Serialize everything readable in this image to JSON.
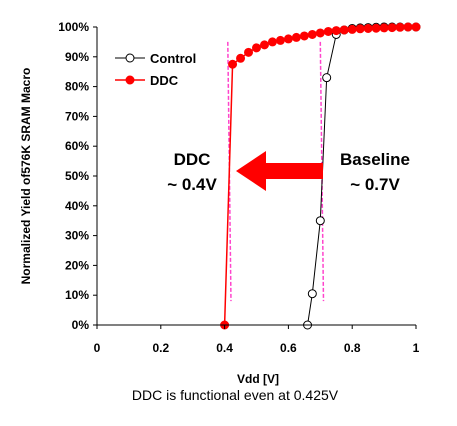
{
  "chart_data": {
    "type": "line",
    "xlabel": "Vdd [V]",
    "ylabel": "Normalized Yield of576K SRAM Macro",
    "xlim": [
      0,
      1
    ],
    "ylim": [
      0,
      100
    ],
    "x_ticks": [
      "0",
      "0.2",
      "0.4",
      "0.6",
      "0.8",
      "1"
    ],
    "y_ticks": [
      "0%",
      "10%",
      "20%",
      "30%",
      "40%",
      "50%",
      "60%",
      "70%",
      "80%",
      "90%",
      "100%"
    ],
    "legend_position": "top-left",
    "grid": false,
    "series": [
      {
        "name": "Control",
        "marker": "open-circle",
        "color": "#000000",
        "x": [
          0.66,
          0.675,
          0.7,
          0.72,
          0.75,
          0.775,
          0.8,
          0.825,
          0.85,
          0.875,
          0.9,
          0.925,
          0.95,
          0.975,
          1.0
        ],
        "y": [
          0,
          10.5,
          35,
          83,
          97.5,
          99,
          99.5,
          99.7,
          99.8,
          99.9,
          100,
          100,
          100,
          100,
          100
        ]
      },
      {
        "name": "DDC",
        "marker": "filled-circle",
        "color": "#ff0000",
        "x": [
          0.4,
          0.425,
          0.45,
          0.475,
          0.5,
          0.525,
          0.55,
          0.575,
          0.6,
          0.625,
          0.65,
          0.675,
          0.7,
          0.725,
          0.75,
          0.775,
          0.8,
          0.825,
          0.85,
          0.875,
          0.9,
          0.925,
          0.95,
          0.975,
          1.0
        ],
        "y": [
          0,
          87.5,
          89.5,
          91.5,
          93,
          94,
          95,
          95.5,
          96,
          96.5,
          97,
          97.5,
          98,
          98.5,
          98.8,
          99,
          99.2,
          99.4,
          99.5,
          99.6,
          99.7,
          99.8,
          99.9,
          100,
          100
        ]
      }
    ],
    "reference_lines": [
      {
        "x_bottom": 0.42,
        "x_top": 0.41,
        "color": "#ff44cc"
      },
      {
        "x_bottom": 0.71,
        "x_top": 0.7,
        "color": "#ff44cc"
      }
    ],
    "annotations": {
      "ddc_line1": "DDC",
      "ddc_line2": "~ 0.4V",
      "baseline_line1": "Baseline",
      "baseline_line2": "~ 0.7V",
      "arrow_color": "#ff0000"
    },
    "caption": "DDC is functional even at 0.425V"
  }
}
